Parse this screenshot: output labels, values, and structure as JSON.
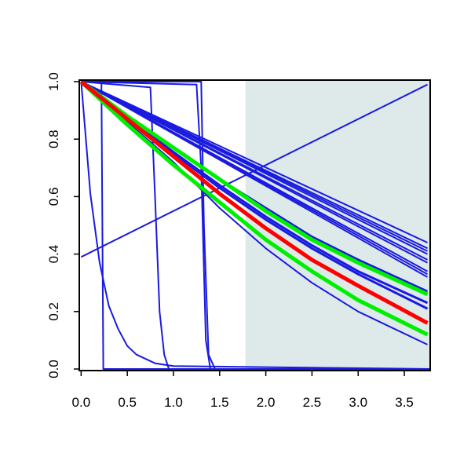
{
  "chart_data": {
    "type": "line",
    "xlim": [
      -0.02,
      3.78
    ],
    "ylim": [
      0,
      1
    ],
    "xticks": [
      {
        "value": 0,
        "label": "0.0"
      },
      0.5,
      {
        "value": 1,
        "label": "1.0"
      },
      1.5,
      {
        "value": 2,
        "label": "2.0"
      },
      2.5,
      {
        "value": 3,
        "label": "3.0"
      },
      3.5
    ],
    "yticks": [
      {
        "value": 0,
        "label": "0.0"
      },
      0.2,
      0.4,
      0.6,
      0.8,
      {
        "value": 1,
        "label": "1.0"
      }
    ],
    "shade": {
      "x": [
        1.78,
        3.78
      ],
      "color": "#deeaea"
    },
    "series": [
      {
        "color": "#1a1ae0",
        "linewidth": 2,
        "x": [
          0,
          3.75
        ],
        "values": [
          0.39,
          0.99
        ]
      },
      {
        "color": "#1a1ae0",
        "linewidth": 2,
        "x": [
          0,
          0.1,
          0.2,
          0.3,
          0.4,
          0.5,
          0.6,
          0.8,
          1.0,
          3.78
        ],
        "values": [
          1,
          0.61,
          0.37,
          0.22,
          0.14,
          0.08,
          0.05,
          0.02,
          0.01,
          0
        ]
      },
      {
        "color": "#1a1ae0",
        "linewidth": 2,
        "x": [
          0,
          0.22,
          0.24,
          3.78
        ],
        "values": [
          1,
          1,
          0,
          0
        ]
      },
      {
        "color": "#1a1ae0",
        "linewidth": 2,
        "x": [
          0,
          0.75,
          0.8,
          0.85,
          0.9,
          0.95,
          3.78
        ],
        "values": [
          1,
          0.98,
          0.6,
          0.2,
          0.05,
          0,
          0
        ]
      },
      {
        "color": "#1a1ae0",
        "linewidth": 2,
        "x": [
          0,
          1.25,
          1.3,
          1.35,
          1.4,
          3.78
        ],
        "values": [
          1,
          0.99,
          0.7,
          0.1,
          0,
          0
        ]
      },
      {
        "color": "#1a1ae0",
        "linewidth": 2,
        "x": [
          0,
          1.3,
          1.33,
          1.38,
          1.45,
          3.78
        ],
        "values": [
          1,
          1,
          0.5,
          0.05,
          0,
          0
        ]
      },
      {
        "color": "#1a1ae0",
        "linewidth": 2,
        "x": [
          0,
          3.75
        ],
        "values": [
          1,
          0.44
        ]
      },
      {
        "color": "#1a1ae0",
        "linewidth": 2,
        "x": [
          0,
          3.75
        ],
        "values": [
          1,
          0.42
        ]
      },
      {
        "color": "#1a1ae0",
        "linewidth": 2,
        "x": [
          0,
          3.75
        ],
        "values": [
          1,
          0.41
        ]
      },
      {
        "color": "#1a1ae0",
        "linewidth": 2,
        "x": [
          0,
          3.75
        ],
        "values": [
          1,
          0.4
        ]
      },
      {
        "color": "#1a1ae0",
        "linewidth": 2,
        "x": [
          0,
          3.75
        ],
        "values": [
          1,
          0.38
        ]
      },
      {
        "color": "#1a1ae0",
        "linewidth": 2,
        "x": [
          0,
          3.75
        ],
        "values": [
          1,
          0.37
        ]
      },
      {
        "color": "#1a1ae0",
        "linewidth": 2,
        "x": [
          0,
          3.75
        ],
        "values": [
          1,
          0.34
        ]
      },
      {
        "color": "#1a1ae0",
        "linewidth": 2,
        "x": [
          0,
          3.75
        ],
        "values": [
          1,
          0.33
        ]
      },
      {
        "color": "#1a1ae0",
        "linewidth": 2,
        "x": [
          0,
          3.75
        ],
        "values": [
          1,
          0.32
        ]
      },
      {
        "color": "#1a1ae0",
        "linewidth": 3,
        "x": [
          0,
          0.5,
          1,
          1.5,
          2,
          2.5,
          3,
          3.75
        ],
        "values": [
          1,
          0.88,
          0.77,
          0.66,
          0.56,
          0.46,
          0.38,
          0.27
        ]
      },
      {
        "color": "#1a1ae0",
        "linewidth": 3,
        "x": [
          0,
          0.5,
          1,
          1.5,
          2,
          2.5,
          3,
          3.75
        ],
        "values": [
          1,
          0.875,
          0.755,
          0.64,
          0.53,
          0.43,
          0.34,
          0.23
        ]
      },
      {
        "color": "#1a1ae0",
        "linewidth": 3,
        "x": [
          0,
          0.5,
          1,
          1.5,
          2,
          2.5,
          3,
          3.75
        ],
        "values": [
          1,
          0.87,
          0.75,
          0.63,
          0.52,
          0.42,
          0.33,
          0.21
        ]
      },
      {
        "color": "#1a1ae0",
        "linewidth": 2,
        "x": [
          0,
          0.5,
          1,
          1.5,
          2,
          2.5,
          3,
          3.75
        ],
        "values": [
          1,
          0.86,
          0.72,
          0.56,
          0.42,
          0.3,
          0.2,
          0.085
        ]
      },
      {
        "color": "#00ee00",
        "linewidth": 5,
        "x": [
          0,
          0.5,
          1,
          1.5,
          2,
          2.5,
          3,
          3.75
        ],
        "values": [
          1,
          0.85,
          0.71,
          0.58,
          0.45,
          0.34,
          0.24,
          0.12
        ]
      },
      {
        "color": "#00ee00",
        "linewidth": 5,
        "x": [
          0,
          0.5,
          1,
          1.5,
          2,
          2.5,
          3,
          3.75
        ],
        "values": [
          1,
          0.88,
          0.77,
          0.66,
          0.55,
          0.45,
          0.37,
          0.26
        ]
      },
      {
        "color": "#ff0000",
        "linewidth": 5,
        "x": [
          0,
          0.5,
          1,
          1.5,
          2,
          2.5,
          3,
          3.75
        ],
        "values": [
          1,
          0.87,
          0.74,
          0.61,
          0.49,
          0.38,
          0.29,
          0.16
        ]
      }
    ]
  }
}
